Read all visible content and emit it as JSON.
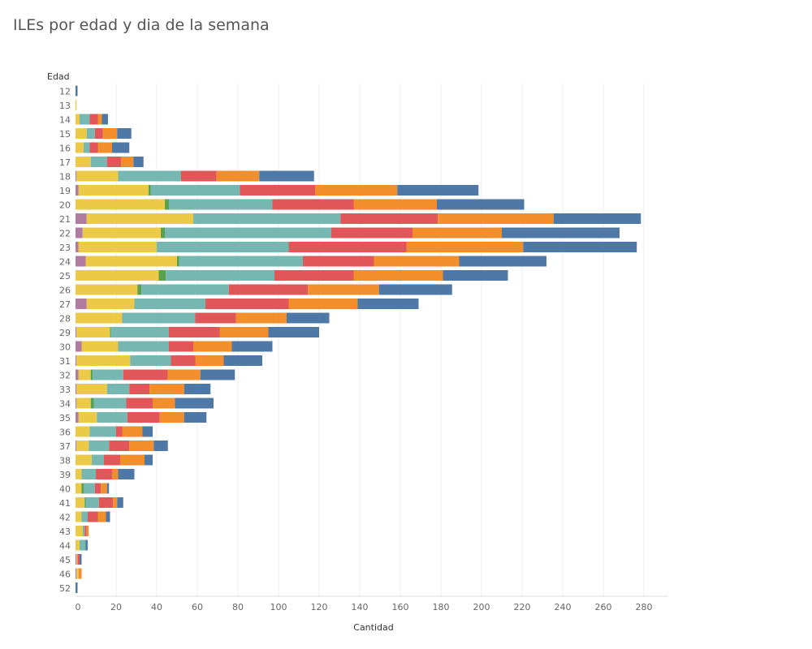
{
  "title": "ILEs por edad y dia de la semana",
  "chart_data": {
    "type": "bar",
    "orientation": "horizontal",
    "stacked": true,
    "title": "ILEs por edad y dia de la semana",
    "xlabel": "Cantidad",
    "ylabel": "Edad",
    "xlim": [
      0,
      290
    ],
    "xticks": [
      0,
      20,
      40,
      60,
      80,
      100,
      120,
      140,
      160,
      180,
      200,
      220,
      240,
      260,
      280
    ],
    "grid": "vertical",
    "categories": [
      "12",
      "13",
      "14",
      "15",
      "16",
      "17",
      "18",
      "19",
      "20",
      "21",
      "22",
      "23",
      "24",
      "25",
      "26",
      "27",
      "28",
      "29",
      "30",
      "31",
      "32",
      "33",
      "34",
      "35",
      "36",
      "37",
      "38",
      "39",
      "40",
      "41",
      "42",
      "43",
      "44",
      "45",
      "46",
      "52"
    ],
    "series": [
      {
        "color": "#b07aa1",
        "values": [
          0,
          0,
          0,
          0,
          0,
          0,
          0.5,
          1.5,
          0,
          5.5,
          3.5,
          1.5,
          5,
          0,
          0,
          5.5,
          0,
          0.5,
          3,
          0.5,
          1.5,
          0.5,
          0.5,
          1.5,
          0,
          0.5,
          0,
          0,
          0,
          0,
          0,
          0,
          0,
          0.5,
          0.5,
          0
        ]
      },
      {
        "color": "#edc948",
        "values": [
          0,
          0.5,
          2,
          5.5,
          4,
          7.5,
          20.5,
          34.5,
          44,
          52.5,
          38.5,
          38.5,
          45,
          41,
          30.5,
          23.5,
          23,
          16.5,
          18,
          26.5,
          6,
          15,
          7,
          9,
          7,
          6,
          8,
          3,
          3,
          4.5,
          3,
          3.5,
          2,
          0.5,
          1,
          0
        ]
      },
      {
        "color": "#59a14f",
        "values": [
          0,
          0,
          0,
          0,
          0,
          0,
          0,
          1,
          2,
          0,
          2,
          0,
          1,
          3.5,
          2,
          0,
          0,
          0.5,
          0,
          0,
          1,
          0,
          1.5,
          0,
          0,
          0,
          0,
          0,
          1,
          0.5,
          0,
          0,
          0,
          0,
          0,
          0
        ]
      },
      {
        "color": "#76b7b2",
        "values": [
          0,
          0,
          5,
          4,
          3,
          8,
          31,
          44,
          51,
          72.5,
          82,
          65,
          61,
          53.5,
          43,
          35,
          36,
          28.5,
          25,
          20,
          15,
          11,
          16,
          15,
          13,
          10,
          6,
          7,
          5.5,
          6.5,
          3,
          1,
          3,
          0,
          0,
          0
        ]
      },
      {
        "color": "#e15759",
        "values": [
          0,
          0,
          4,
          4,
          4,
          7,
          17.5,
          37,
          40,
          48,
          40,
          58,
          35,
          39,
          39,
          41,
          20,
          25,
          12,
          12,
          22,
          10,
          13,
          16,
          3,
          10,
          8,
          8,
          3,
          7,
          5,
          1,
          0,
          1,
          0,
          0
        ]
      },
      {
        "color": "#f28e2b",
        "values": [
          0,
          0,
          2,
          7,
          7,
          6,
          21,
          40.5,
          41,
          57,
          44,
          57.5,
          42,
          44,
          35,
          34,
          25,
          24,
          19,
          14,
          16,
          17,
          11,
          12,
          10,
          12,
          12,
          3,
          3,
          2,
          4,
          1,
          0,
          0,
          1.5,
          0
        ]
      },
      {
        "color": "#4e79a7",
        "values": [
          1,
          0,
          3,
          7,
          8.5,
          5,
          27,
          40,
          43,
          43,
          58,
          56,
          43,
          32,
          36,
          30,
          21,
          25,
          20,
          19,
          17,
          13,
          19,
          11,
          5,
          7,
          4,
          8,
          1,
          3,
          2,
          0,
          1,
          1,
          0,
          1
        ]
      }
    ]
  }
}
